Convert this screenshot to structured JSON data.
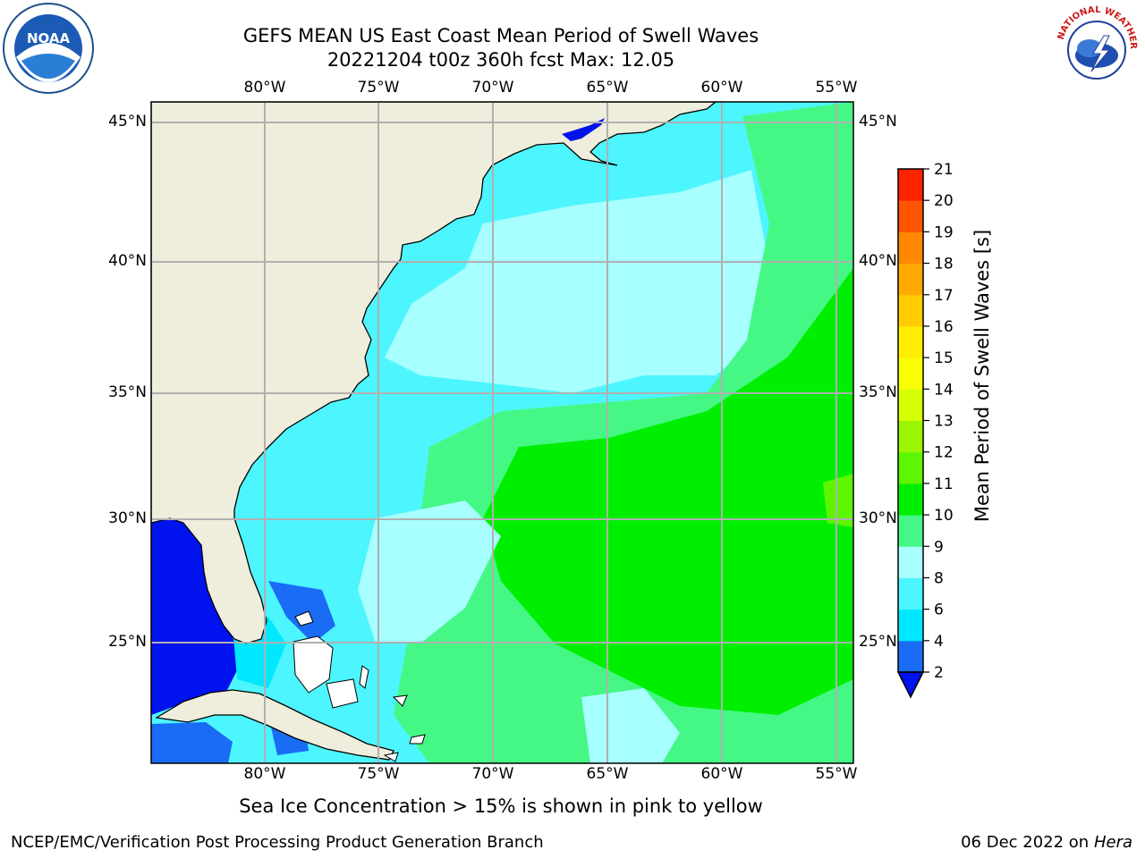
{
  "title": {
    "line1": "GEFS MEAN US East Coast Mean Period of Swell Waves",
    "line2": "20221204 t00z 360h fcst   Max: 12.05"
  },
  "map": {
    "lon_labels": [
      "80°W",
      "75°W",
      "70°W",
      "65°W",
      "60°W",
      "55°W"
    ],
    "lat_labels": [
      "45°N",
      "40°N",
      "35°N",
      "30°N",
      "25°N"
    ],
    "colors": {
      "land": "#efeddc",
      "gridlines": "#b0b0b0",
      "coastline": "#000000"
    }
  },
  "colorbar": {
    "label": "Mean Period of Swell Waves [s]",
    "ticks": [
      "2",
      "4",
      "6",
      "8",
      "9",
      "10",
      "11",
      "12",
      "13",
      "14",
      "15",
      "16",
      "17",
      "18",
      "19",
      "20",
      "21"
    ],
    "colors": [
      "#1a6cf5",
      "#00e8ff",
      "#4df5ff",
      "#a8ffff",
      "#45f885",
      "#00ef00",
      "#5ef500",
      "#9cf500",
      "#d5ff00",
      "#f7ff00",
      "#ffee00",
      "#ffcc00",
      "#ffaa00",
      "#ff8800",
      "#ff5500",
      "#ff2200"
    ],
    "under_color": "#0012ee"
  },
  "footer": {
    "ice_note": "Sea Ice Concentration > 15% is shown in pink to yellow",
    "credit": "NCEP/EMC/Verification Post Processing Product Generation Branch",
    "date": "06 Dec 2022 on",
    "machine": "Hera"
  },
  "logos": {
    "left_text": "NOAA",
    "right_text": "NATIONAL WEATHER SERVICE"
  }
}
